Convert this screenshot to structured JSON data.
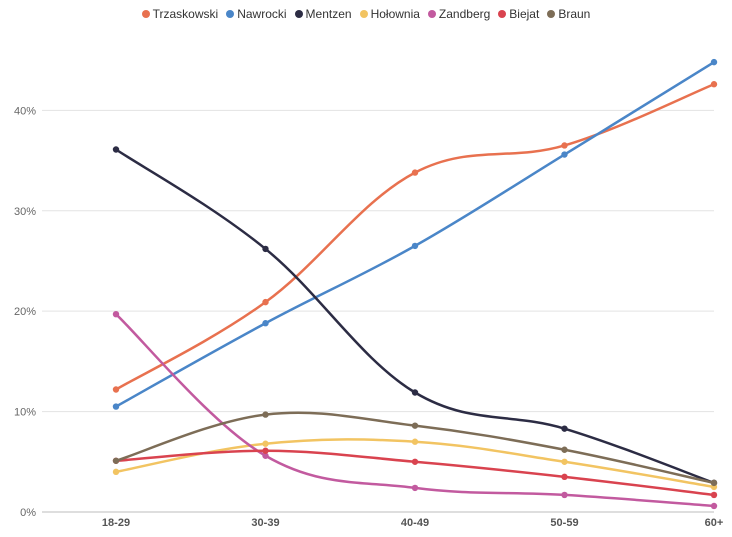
{
  "chart_data": {
    "type": "line",
    "categories": [
      "18-29",
      "30-39",
      "40-49",
      "50-59",
      "60+"
    ],
    "y_ticks": [
      "0%",
      "10%",
      "20%",
      "30%",
      "40%"
    ],
    "ylim": [
      0,
      48
    ],
    "grid": true,
    "legend_position": "top-center",
    "series": [
      {
        "name": "Trzaskowski",
        "color": "#e8714f",
        "values": [
          12.2,
          20.9,
          33.8,
          36.5,
          42.6
        ]
      },
      {
        "name": "Nawrocki",
        "color": "#4a86c8",
        "values": [
          10.5,
          18.8,
          26.5,
          35.6,
          44.8
        ]
      },
      {
        "name": "Mentzen",
        "color": "#2c2c44",
        "values": [
          36.1,
          26.2,
          11.9,
          8.3,
          2.9
        ]
      },
      {
        "name": "Hołownia",
        "color": "#f2c462",
        "values": [
          4.0,
          6.8,
          7.0,
          5.0,
          2.5
        ]
      },
      {
        "name": "Zandberg",
        "color": "#c25a9f",
        "values": [
          19.7,
          5.6,
          2.4,
          1.7,
          0.6
        ]
      },
      {
        "name": "Biejat",
        "color": "#d9434f",
        "values": [
          5.1,
          6.1,
          5.0,
          3.5,
          1.7
        ]
      },
      {
        "name": "Braun",
        "color": "#7d6d57",
        "values": [
          5.1,
          9.7,
          8.6,
          6.2,
          2.9
        ]
      }
    ]
  }
}
